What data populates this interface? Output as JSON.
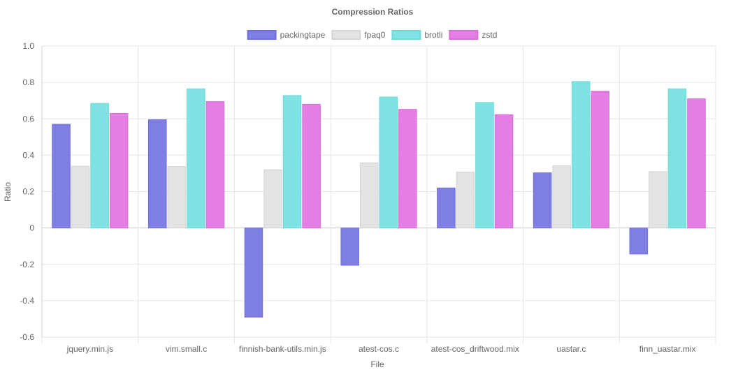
{
  "chart_data": {
    "type": "bar",
    "title": "Compression Ratios",
    "xlabel": "File",
    "ylabel": "Ratio",
    "ylim": [
      -0.6,
      1.0
    ],
    "yticks": [
      1.0,
      0.8,
      0.6,
      0.4,
      0.2,
      0,
      -0.2,
      -0.4,
      -0.6
    ],
    "ytick_labels": [
      "1.0",
      "0.8",
      "0.6",
      "0.4",
      "0.2",
      "0",
      "-0.2",
      "-0.4",
      "-0.6"
    ],
    "grid": true,
    "legend_position": "top",
    "categories": [
      "jquery.min.js",
      "vim.small.c",
      "finnish-bank-utils.min.js",
      "atest-cos.c",
      "atest-cos_driftwood.mix",
      "uastar.c",
      "finn_uastar.mix"
    ],
    "series": [
      {
        "name": "packingtape",
        "color": "#7f7fe3",
        "border": "#6f6fe0",
        "values": [
          0.57,
          0.595,
          -0.49,
          -0.205,
          0.22,
          0.303,
          -0.143
        ]
      },
      {
        "name": "fpaq0",
        "color": "#e3e3e3",
        "border": "#d5d5d5",
        "values": [
          0.34,
          0.338,
          0.32,
          0.358,
          0.308,
          0.342,
          0.31
        ]
      },
      {
        "name": "brotli",
        "color": "#7fe3e3",
        "border": "#6dd9d9",
        "values": [
          0.685,
          0.765,
          0.728,
          0.72,
          0.69,
          0.805,
          0.765
        ]
      },
      {
        "name": "zstd",
        "color": "#e37fe3",
        "border": "#d96dd9",
        "values": [
          0.63,
          0.695,
          0.68,
          0.652,
          0.623,
          0.752,
          0.71
        ]
      }
    ]
  }
}
